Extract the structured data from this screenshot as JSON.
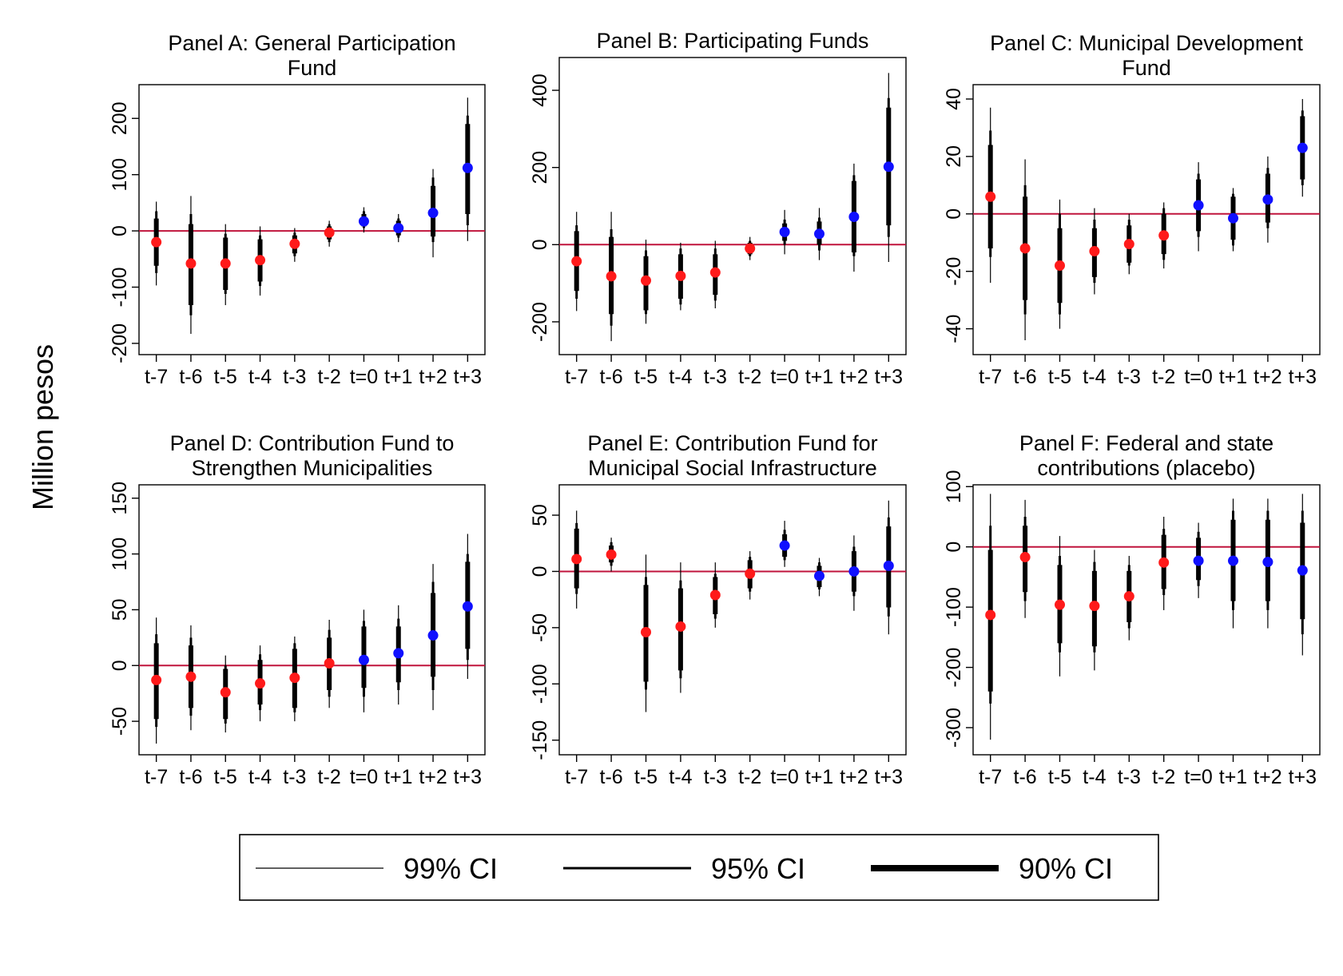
{
  "figure": {
    "y_label": "Million pesos",
    "legend": [
      {
        "label": "99% CI",
        "width": 1.2
      },
      {
        "label": "95% CI",
        "width": 3
      },
      {
        "label": "90% CI",
        "width": 8
      }
    ],
    "colors": {
      "pre": "#ff1a1a",
      "post": "#1010ff",
      "zero_line": "#c0143c",
      "ci": "#000000"
    }
  },
  "chart_data": [
    {
      "type": "scatter",
      "title": [
        "Panel A: General Participation",
        "Fund"
      ],
      "categories": [
        "t-7",
        "t-6",
        "t-5",
        "t-4",
        "t-3",
        "t-2",
        "t=0",
        "t+1",
        "t+2",
        "t+3"
      ],
      "ylim": [
        -220,
        260
      ],
      "yticks": [
        -200,
        -100,
        0,
        100,
        200
      ],
      "ytick_labels": [
        "-200",
        "-100",
        "0",
        "100",
        "200"
      ],
      "values": [
        -20,
        -58,
        -58,
        -52,
        -23,
        -3,
        17,
        5,
        32,
        112
      ],
      "ci90": [
        [
          -62,
          22
        ],
        [
          -132,
          12
        ],
        [
          -105,
          -12
        ],
        [
          -90,
          -15
        ],
        [
          -40,
          -8
        ],
        [
          -15,
          8
        ],
        [
          8,
          30
        ],
        [
          -8,
          18
        ],
        [
          -10,
          80
        ],
        [
          30,
          190
        ]
      ],
      "ci95": [
        [
          -75,
          35
        ],
        [
          -150,
          30
        ],
        [
          -112,
          -5
        ],
        [
          -98,
          -8
        ],
        [
          -45,
          -3
        ],
        [
          -20,
          12
        ],
        [
          5,
          35
        ],
        [
          -12,
          22
        ],
        [
          -20,
          95
        ],
        [
          10,
          205
        ]
      ],
      "ci99": [
        [
          -97,
          52
        ],
        [
          -183,
          62
        ],
        [
          -132,
          12
        ],
        [
          -115,
          8
        ],
        [
          -55,
          5
        ],
        [
          -28,
          18
        ],
        [
          -3,
          42
        ],
        [
          -20,
          30
        ],
        [
          -47,
          110
        ],
        [
          -18,
          237
        ]
      ],
      "period": [
        "pre",
        "pre",
        "pre",
        "pre",
        "pre",
        "pre",
        "post",
        "post",
        "post",
        "post"
      ]
    },
    {
      "type": "scatter",
      "title": [
        "Panel B: Participating Funds"
      ],
      "categories": [
        "t-7",
        "t-6",
        "t-5",
        "t-4",
        "t-3",
        "t-2",
        "t=0",
        "t+1",
        "t+2",
        "t+3"
      ],
      "ylim": [
        -285,
        485
      ],
      "yticks": [
        -200,
        0,
        200,
        400
      ],
      "ytick_labels": [
        "-200",
        "0",
        "200",
        "400"
      ],
      "values": [
        -43,
        -82,
        -93,
        -81,
        -72,
        -10,
        33,
        28,
        72,
        202
      ],
      "ci90": [
        [
          -120,
          35
        ],
        [
          -180,
          20
        ],
        [
          -170,
          -30
        ],
        [
          -140,
          -25
        ],
        [
          -130,
          -25
        ],
        [
          -25,
          5
        ],
        [
          10,
          55
        ],
        [
          0,
          60
        ],
        [
          -20,
          165
        ],
        [
          50,
          355
        ]
      ],
      "ci95": [
        [
          -140,
          50
        ],
        [
          -210,
          40
        ],
        [
          -180,
          -15
        ],
        [
          -155,
          -10
        ],
        [
          -145,
          -10
        ],
        [
          -30,
          10
        ],
        [
          0,
          65
        ],
        [
          -15,
          70
        ],
        [
          -30,
          180
        ],
        [
          20,
          380
        ]
      ],
      "ci99": [
        [
          -172,
          85
        ],
        [
          -250,
          85
        ],
        [
          -205,
          13
        ],
        [
          -170,
          5
        ],
        [
          -165,
          10
        ],
        [
          -40,
          20
        ],
        [
          -25,
          90
        ],
        [
          -40,
          95
        ],
        [
          -70,
          210
        ],
        [
          -45,
          445
        ]
      ],
      "period": [
        "pre",
        "pre",
        "pre",
        "pre",
        "pre",
        "pre",
        "post",
        "post",
        "post",
        "post"
      ]
    },
    {
      "type": "scatter",
      "title": [
        "Panel C: Municipal Development",
        "Fund"
      ],
      "categories": [
        "t-7",
        "t-6",
        "t-5",
        "t-4",
        "t-3",
        "t-2",
        "t=0",
        "t+1",
        "t+2",
        "t+3"
      ],
      "ylim": [
        -49,
        45
      ],
      "yticks": [
        -40,
        -20,
        0,
        20,
        40
      ],
      "ytick_labels": [
        "-40",
        "-20",
        "0",
        "20",
        "40"
      ],
      "values": [
        6,
        -12,
        -18,
        -13,
        -10.5,
        -7.5,
        3,
        -1.5,
        5,
        23
      ],
      "ci90": [
        [
          -12,
          24
        ],
        [
          -30,
          6
        ],
        [
          -31,
          -5
        ],
        [
          -22,
          -5
        ],
        [
          -17,
          -4
        ],
        [
          -14,
          0
        ],
        [
          -6,
          12
        ],
        [
          -9,
          6
        ],
        [
          -3,
          14
        ],
        [
          12,
          34
        ]
      ],
      "ci95": [
        [
          -15,
          29
        ],
        [
          -35,
          10
        ],
        [
          -35,
          0
        ],
        [
          -24,
          -2
        ],
        [
          -18,
          -2
        ],
        [
          -16,
          2
        ],
        [
          -8,
          14
        ],
        [
          -11,
          7
        ],
        [
          -5,
          16
        ],
        [
          10,
          36
        ]
      ],
      "ci99": [
        [
          -24,
          37
        ],
        [
          -44,
          19
        ],
        [
          -40,
          5
        ],
        [
          -28,
          2
        ],
        [
          -21,
          0
        ],
        [
          -19,
          4
        ],
        [
          -13,
          18
        ],
        [
          -13,
          9
        ],
        [
          -10,
          20
        ],
        [
          6,
          40
        ]
      ],
      "period": [
        "pre",
        "pre",
        "pre",
        "pre",
        "pre",
        "pre",
        "post",
        "post",
        "post",
        "post"
      ]
    },
    {
      "type": "scatter",
      "title": [
        "Panel D: Contribution Fund to",
        "Strengthen Municipalities"
      ],
      "categories": [
        "t-7",
        "t-6",
        "t-5",
        "t-4",
        "t-3",
        "t-2",
        "t=0",
        "t+1",
        "t+2",
        "t+3"
      ],
      "ylim": [
        -80,
        162
      ],
      "yticks": [
        -50,
        0,
        50,
        100,
        150
      ],
      "ytick_labels": [
        "-50",
        "0",
        "50",
        "100",
        "150"
      ],
      "values": [
        -13,
        -10,
        -24,
        -16,
        -11,
        2,
        5,
        11,
        27,
        53
      ],
      "ci90": [
        [
          -48,
          20
        ],
        [
          -38,
          18
        ],
        [
          -48,
          -3
        ],
        [
          -35,
          5
        ],
        [
          -38,
          15
        ],
        [
          -22,
          25
        ],
        [
          -20,
          35
        ],
        [
          -15,
          35
        ],
        [
          -10,
          65
        ],
        [
          15,
          93
        ]
      ],
      "ci95": [
        [
          -55,
          28
        ],
        [
          -45,
          25
        ],
        [
          -52,
          0
        ],
        [
          -40,
          10
        ],
        [
          -42,
          20
        ],
        [
          -28,
          32
        ],
        [
          -28,
          40
        ],
        [
          -22,
          42
        ],
        [
          -22,
          75
        ],
        [
          5,
          100
        ]
      ],
      "ci99": [
        [
          -70,
          43
        ],
        [
          -58,
          36
        ],
        [
          -60,
          9
        ],
        [
          -50,
          18
        ],
        [
          -50,
          26
        ],
        [
          -38,
          41
        ],
        [
          -42,
          50
        ],
        [
          -35,
          54
        ],
        [
          -40,
          91
        ],
        [
          -12,
          118
        ]
      ],
      "period": [
        "pre",
        "pre",
        "pre",
        "pre",
        "pre",
        "pre",
        "post",
        "post",
        "post",
        "post"
      ]
    },
    {
      "type": "scatter",
      "title": [
        "Panel E: Contribution Fund for",
        "Municipal Social Infrastructure"
      ],
      "categories": [
        "t-7",
        "t-6",
        "t-5",
        "t-4",
        "t-3",
        "t-2",
        "t=0",
        "t+1",
        "t+2",
        "t+3"
      ],
      "ylim": [
        -163,
        77
      ],
      "yticks": [
        -150,
        -100,
        -50,
        0,
        50
      ],
      "ytick_labels": [
        "-150",
        "-100",
        "-50",
        "0",
        "50"
      ],
      "values": [
        11,
        15,
        -54,
        -49,
        -21,
        -2,
        23,
        -4,
        0,
        5
      ],
      "ci90": [
        [
          -15,
          38
        ],
        [
          8,
          23
        ],
        [
          -98,
          -12
        ],
        [
          -88,
          -15
        ],
        [
          -38,
          -5
        ],
        [
          -15,
          10
        ],
        [
          13,
          33
        ],
        [
          -14,
          5
        ],
        [
          -18,
          18
        ],
        [
          -32,
          40
        ]
      ],
      "ci95": [
        [
          -20,
          43
        ],
        [
          5,
          26
        ],
        [
          -105,
          -5
        ],
        [
          -95,
          -8
        ],
        [
          -42,
          -2
        ],
        [
          -18,
          13
        ],
        [
          10,
          37
        ],
        [
          -16,
          8
        ],
        [
          -22,
          22
        ],
        [
          -40,
          48
        ]
      ],
      "ci99": [
        [
          -33,
          54
        ],
        [
          0,
          30
        ],
        [
          -125,
          15
        ],
        [
          -108,
          8
        ],
        [
          -50,
          8
        ],
        [
          -25,
          18
        ],
        [
          4,
          45
        ],
        [
          -22,
          12
        ],
        [
          -35,
          32
        ],
        [
          -56,
          63
        ]
      ],
      "period": [
        "pre",
        "pre",
        "pre",
        "pre",
        "pre",
        "pre",
        "post",
        "post",
        "post",
        "post"
      ]
    },
    {
      "type": "scatter",
      "title": [
        "Panel F: Federal and state",
        "contributions (placebo)"
      ],
      "categories": [
        "t-7",
        "t-6",
        "t-5",
        "t-4",
        "t-3",
        "t-2",
        "t=0",
        "t+1",
        "t+2",
        "t+3"
      ],
      "ylim": [
        -345,
        103
      ],
      "yticks": [
        -300,
        -200,
        -100,
        0,
        100
      ],
      "ytick_labels": [
        "-300",
        "-200",
        "-100",
        "0",
        "100"
      ],
      "values": [
        -113,
        -17,
        -96,
        -98,
        -82,
        -26,
        -23,
        -23,
        -25,
        -39
      ],
      "ci90": [
        [
          -240,
          -5
        ],
        [
          -75,
          35
        ],
        [
          -160,
          -30
        ],
        [
          -165,
          -40
        ],
        [
          -125,
          -40
        ],
        [
          -70,
          20
        ],
        [
          -55,
          15
        ],
        [
          -90,
          45
        ],
        [
          -90,
          45
        ],
        [
          -120,
          40
        ]
      ],
      "ci95": [
        [
          -260,
          35
        ],
        [
          -90,
          50
        ],
        [
          -175,
          -15
        ],
        [
          -175,
          -25
        ],
        [
          -135,
          -30
        ],
        [
          -80,
          30
        ],
        [
          -65,
          25
        ],
        [
          -105,
          60
        ],
        [
          -105,
          60
        ],
        [
          -145,
          60
        ]
      ],
      "ci99": [
        [
          -320,
          88
        ],
        [
          -118,
          78
        ],
        [
          -215,
          18
        ],
        [
          -205,
          -5
        ],
        [
          -155,
          -15
        ],
        [
          -105,
          50
        ],
        [
          -85,
          40
        ],
        [
          -135,
          80
        ],
        [
          -135,
          80
        ],
        [
          -180,
          88
        ]
      ],
      "period": [
        "pre",
        "pre",
        "pre",
        "pre",
        "pre",
        "pre",
        "post",
        "post",
        "post",
        "post"
      ]
    }
  ]
}
